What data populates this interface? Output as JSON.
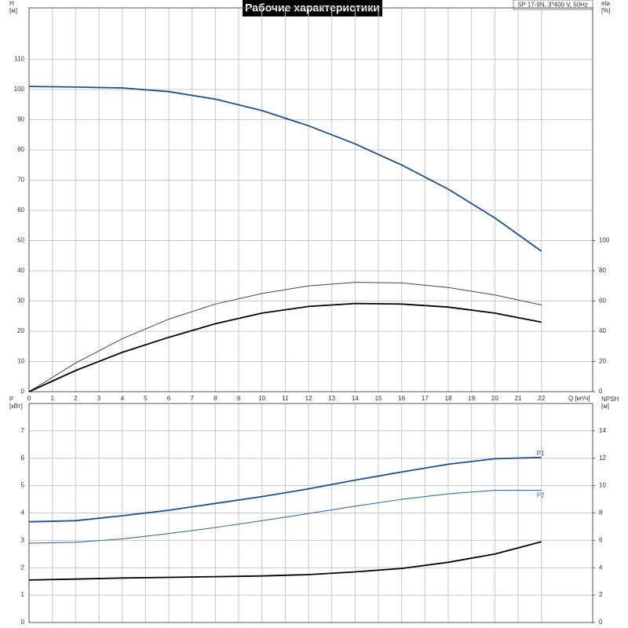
{
  "chart_data": [
    {
      "type": "line",
      "title": "Рабочие характеристики",
      "subtitle": "SP 17-9N, 3*400 V, 50Hz",
      "ylabel": [
        "H",
        "[м]"
      ],
      "y2label": [
        "eta",
        "[%]"
      ],
      "xlabel": "Q [м³/ч]",
      "x": [
        0,
        2,
        4,
        6,
        8,
        10,
        12,
        14,
        16,
        18,
        20,
        22
      ],
      "xlim": [
        0,
        24.2
      ],
      "xticks": [
        0,
        1,
        2,
        3,
        4,
        5,
        6,
        7,
        8,
        9,
        10,
        11,
        12,
        13,
        14,
        15,
        16,
        17,
        18,
        19,
        20,
        21,
        22
      ],
      "ylim": [
        0,
        127
      ],
      "yticks": [
        0,
        10,
        20,
        30,
        40,
        50,
        60,
        70,
        80,
        90,
        100,
        110
      ],
      "y2lim": [
        0,
        254
      ],
      "y2ticks": [
        0,
        20,
        40,
        60,
        80,
        100
      ],
      "grid": true,
      "series": [
        {
          "color": "#1f4e8c",
          "width": 1.8,
          "values": [
            101,
            100.8,
            100.5,
            99.3,
            96.8,
            93,
            88,
            82,
            75,
            67,
            57.5,
            46.5
          ]
        },
        {
          "color": "#444444",
          "width": 1,
          "axis": "y2",
          "values": [
            0,
            19,
            35,
            48,
            58,
            65,
            70,
            72.4,
            72,
            69,
            64,
            57.4
          ]
        },
        {
          "color": "#000000",
          "width": 1.8,
          "axis": "y2",
          "values": [
            0,
            14,
            26,
            36,
            45,
            52,
            56.4,
            58.4,
            58,
            56,
            52,
            46
          ]
        }
      ]
    },
    {
      "type": "line",
      "ylabel": [
        "P",
        "[кВт]"
      ],
      "y2label": [
        "NPSH",
        "[м]"
      ],
      "x": [
        0,
        2,
        4,
        6,
        8,
        10,
        12,
        14,
        16,
        18,
        20,
        22
      ],
      "xlim": [
        0,
        24.2
      ],
      "ylim": [
        0,
        8
      ],
      "yticks": [
        0,
        1,
        2,
        3,
        4,
        5,
        6,
        7
      ],
      "y2lim": [
        0,
        16
      ],
      "y2ticks": [
        0,
        2,
        4,
        6,
        8,
        10,
        12,
        14
      ],
      "grid": true,
      "series": [
        {
          "name": "P1",
          "color": "#1f4e8c",
          "width": 1.8,
          "values": [
            3.68,
            3.72,
            3.9,
            4.1,
            4.35,
            4.6,
            4.88,
            5.2,
            5.5,
            5.78,
            5.98,
            6.03
          ]
        },
        {
          "name": "P2",
          "color": "#3b6ea5",
          "width": 1.1,
          "values": [
            2.9,
            2.93,
            3.05,
            3.25,
            3.47,
            3.72,
            3.98,
            4.25,
            4.5,
            4.7,
            4.83,
            4.83
          ]
        },
        {
          "color": "#000000",
          "width": 1.8,
          "axis": "y2",
          "values": [
            3.1,
            3.17,
            3.25,
            3.3,
            3.35,
            3.4,
            3.5,
            3.7,
            3.95,
            4.4,
            5.0,
            5.9
          ]
        }
      ]
    }
  ]
}
